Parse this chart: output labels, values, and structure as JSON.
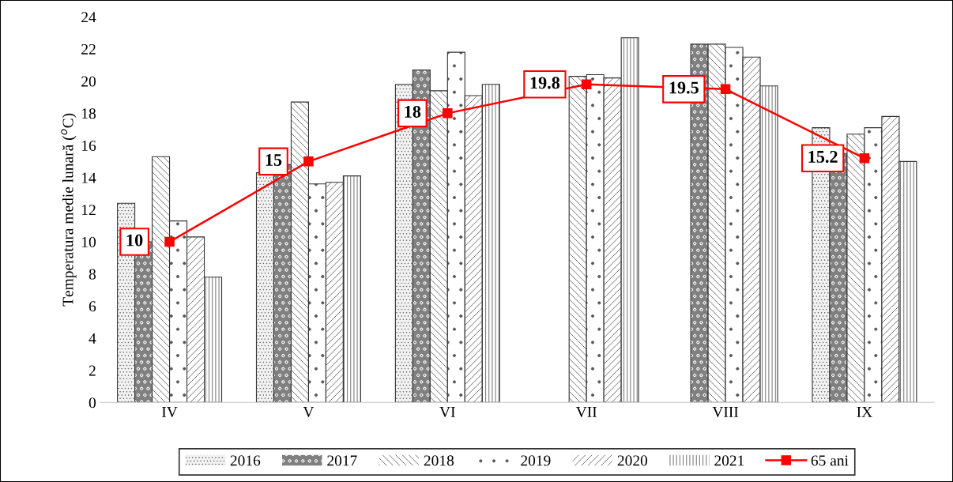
{
  "chart_data": {
    "type": "bar",
    "ylabel": "Temperatura medie lunară ($^{o}$C)",
    "categories": [
      "IV",
      "V",
      "VI",
      "VII",
      "VIII",
      "IX"
    ],
    "series": [
      {
        "name": "2016",
        "color": "#f2f2f2",
        "values": [
          12.4,
          14.3,
          19.8,
          null,
          null,
          17.1
        ]
      },
      {
        "name": "2017",
        "color": "#808080",
        "values": [
          10.0,
          14.8,
          20.7,
          null,
          22.3,
          15.5
        ]
      },
      {
        "name": "2018",
        "color": "#ffffff",
        "values": [
          15.3,
          18.7,
          19.4,
          20.3,
          22.3,
          16.7
        ]
      },
      {
        "name": "2019",
        "color": "#ffffff",
        "values": [
          11.3,
          13.6,
          21.8,
          20.4,
          22.1,
          17.1
        ]
      },
      {
        "name": "2020",
        "color": "#ffffff",
        "values": [
          10.3,
          13.7,
          19.1,
          20.2,
          21.5,
          17.8
        ]
      },
      {
        "name": "2021",
        "color": "#ffffff",
        "values": [
          7.8,
          14.1,
          19.8,
          22.7,
          19.7,
          15.0
        ]
      },
      {
        "name": "65 ani",
        "type": "line",
        "color": "#ff0000",
        "marker": "square",
        "values": [
          10,
          15,
          18,
          19.8,
          19.5,
          15.2
        ],
        "value_labels": [
          "10",
          "15",
          "18",
          "19.8",
          "19.5",
          "15.2"
        ]
      }
    ],
    "ylim": [
      0,
      24
    ],
    "yticks": [
      0,
      2,
      4,
      6,
      8,
      10,
      12,
      14,
      16,
      18,
      20,
      22,
      24
    ],
    "grid": false,
    "legend": "bottom"
  }
}
